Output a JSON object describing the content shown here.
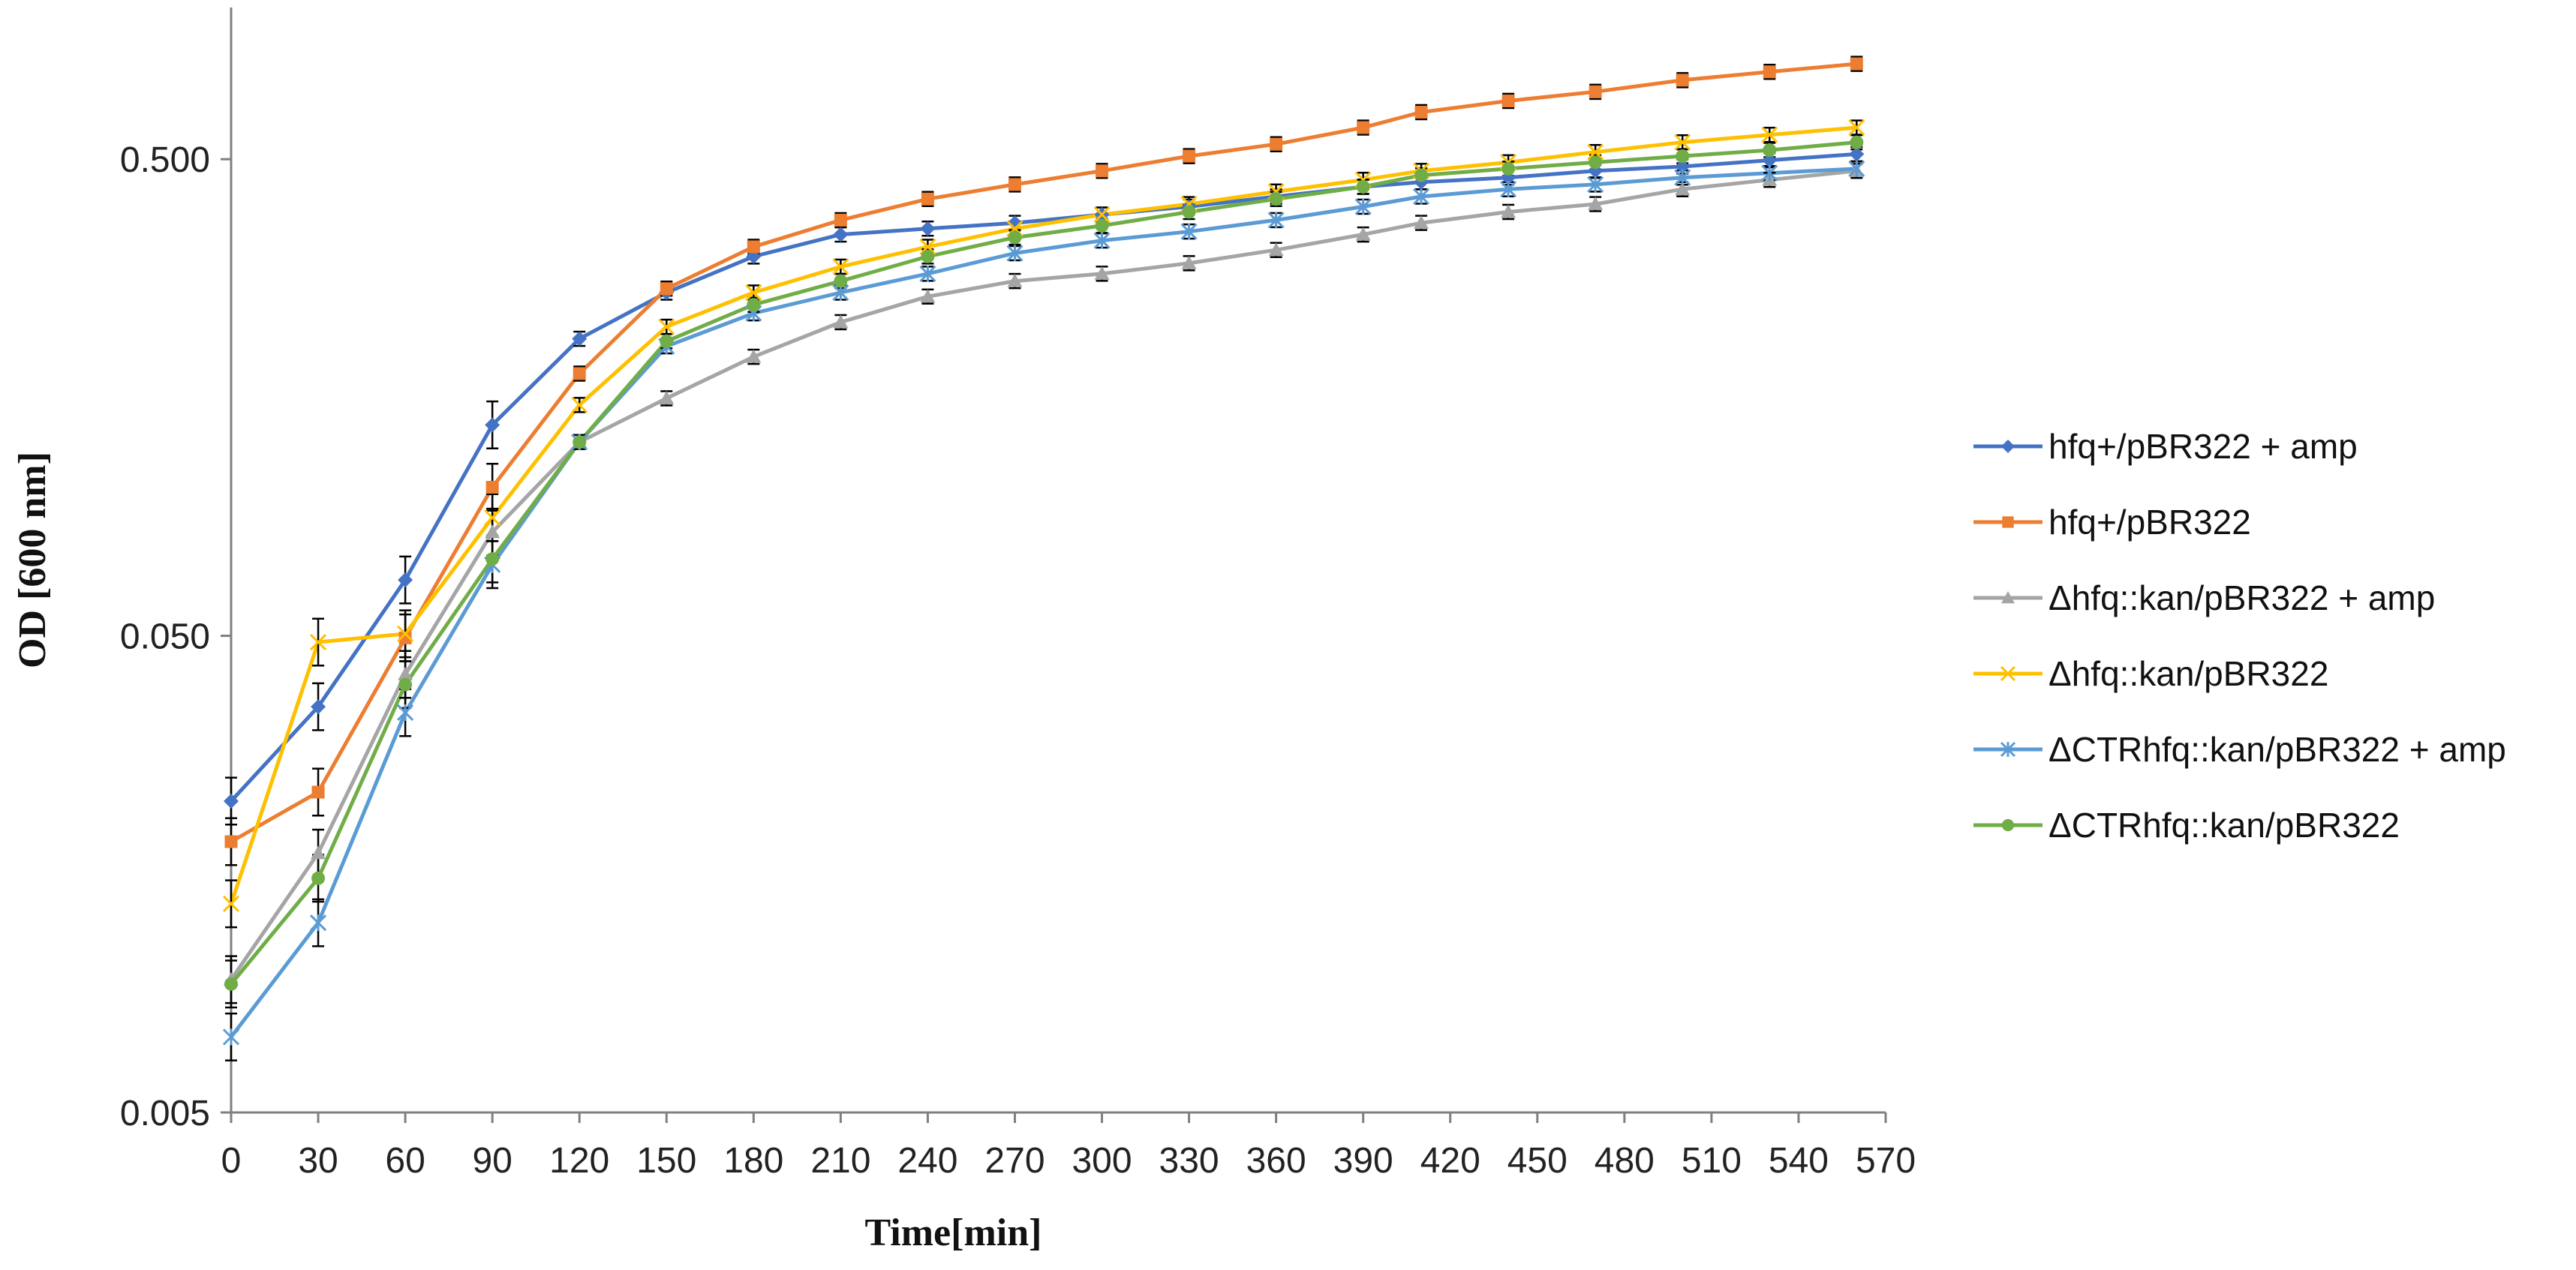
{
  "chart_data": {
    "type": "line",
    "title": "",
    "xlabel": "Time[min]",
    "ylabel": "OD [600 nm]",
    "y_scale": "log",
    "ylim": [
      0.005,
      0.9
    ],
    "xlim": [
      0,
      570
    ],
    "x_ticks": [
      "0",
      "30",
      "60",
      "90",
      "120",
      "150",
      "180",
      "210",
      "240",
      "270",
      "300",
      "330",
      "360",
      "390",
      "420",
      "450",
      "480",
      "510",
      "540",
      "570"
    ],
    "y_ticks": [
      "0.005",
      "0.050",
      "0.500"
    ],
    "y_tick_values": [
      0.005,
      0.05,
      0.5
    ],
    "x_tick_values": [
      0,
      30,
      60,
      90,
      120,
      150,
      180,
      210,
      240,
      270,
      300,
      330,
      360,
      390,
      420,
      450,
      480,
      510,
      540,
      570
    ],
    "legend_position": "right",
    "grid": false,
    "error_bars": true,
    "x": [
      0,
      30,
      60,
      90,
      120,
      150,
      180,
      210,
      240,
      270,
      300,
      330,
      360,
      390,
      410,
      440,
      470,
      500,
      530,
      560
    ],
    "series": [
      {
        "name": "hfq+/pBR322 + amp",
        "color": "#4472C4",
        "marker": "diamond",
        "values": [
          0.0225,
          0.0355,
          0.0655,
          0.1385,
          0.21,
          0.2625,
          0.3125,
          0.3475,
          0.3575,
          0.3675,
          0.3825,
          0.3975,
          0.4175,
          0.4375,
          0.4475,
          0.4575,
          0.4725,
          0.4825,
          0.4975,
          0.5125
        ]
      },
      {
        "name": "hfq+/pBR322",
        "color": "#ED7D31",
        "marker": "square",
        "values": [
          0.0185,
          0.0235,
          0.0495,
          0.1025,
          0.1775,
          0.2675,
          0.3275,
          0.3725,
          0.4125,
          0.4425,
          0.4725,
          0.5075,
          0.5375,
          0.5825,
          0.6275,
          0.6625,
          0.6925,
          0.7325,
          0.7625,
          0.7925
        ]
      },
      {
        "name": "Δhfq::kan/pBR322 + amp",
        "color": "#A5A5A5",
        "marker": "triangle",
        "values": [
          0.0095,
          0.0175,
          0.0415,
          0.0825,
          0.1275,
          0.1575,
          0.1925,
          0.2275,
          0.2575,
          0.2775,
          0.2875,
          0.3025,
          0.3225,
          0.3475,
          0.3675,
          0.3875,
          0.4025,
          0.4325,
          0.4525,
          0.4725
        ]
      },
      {
        "name": "Δhfq::kan/pBR322",
        "color": "#FFC000",
        "marker": "x",
        "values": [
          0.0137,
          0.0485,
          0.0505,
          0.0885,
          0.1525,
          0.2225,
          0.2625,
          0.2975,
          0.3275,
          0.3575,
          0.3825,
          0.4025,
          0.4275,
          0.4525,
          0.4725,
          0.4925,
          0.5175,
          0.5425,
          0.5625,
          0.5825
        ]
      },
      {
        "name": "ΔCTRhfq::kan/pBR322 + amp",
        "color": "#5B9BD5",
        "marker": "star",
        "values": [
          0.0072,
          0.0125,
          0.0345,
          0.0705,
          0.1275,
          0.2025,
          0.2375,
          0.2625,
          0.2875,
          0.3175,
          0.3375,
          0.3525,
          0.3725,
          0.3975,
          0.4175,
          0.4325,
          0.4425,
          0.4575,
          0.4675,
          0.4775
        ]
      },
      {
        "name": "ΔCTRhfq::kan/pBR322",
        "color": "#70AD47",
        "marker": "circle",
        "values": [
          0.0093,
          0.0155,
          0.0395,
          0.0725,
          0.1275,
          0.2075,
          0.2475,
          0.2775,
          0.3125,
          0.3425,
          0.3625,
          0.3875,
          0.4125,
          0.4375,
          0.4625,
          0.4775,
          0.4925,
          0.5075,
          0.5225,
          0.5425
        ]
      }
    ]
  }
}
